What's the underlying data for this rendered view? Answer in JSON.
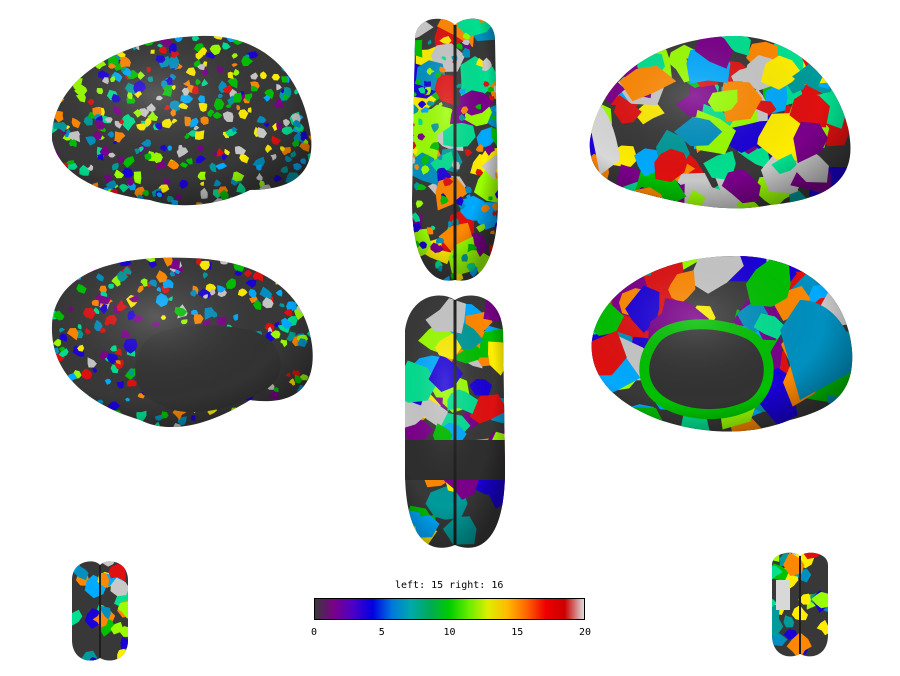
{
  "colorbar": {
    "title": "left: 15 right: 16",
    "ticks": [
      "0",
      "5",
      "10",
      "15",
      "20"
    ],
    "min": 0,
    "max": 20,
    "colors": [
      "#3a3a3a",
      "#7a008a",
      "#4b00c8",
      "#0000e0",
      "#0077dd",
      "#00aaaa",
      "#00aa55",
      "#00cc00",
      "#66ee00",
      "#ddee00",
      "#ffbb00",
      "#ff6600",
      "#ee0000",
      "#cc0000",
      "#dddddd"
    ]
  },
  "parcel_palette": [
    "#1a00d8",
    "#00c000",
    "#009a9a",
    "#ffee00",
    "#e01010",
    "#7a008a",
    "#00aaff",
    "#9aff00",
    "#ff8800",
    "#c8c8c8",
    "#00e090",
    "#0090c0"
  ],
  "surface_color": "#383838"
}
